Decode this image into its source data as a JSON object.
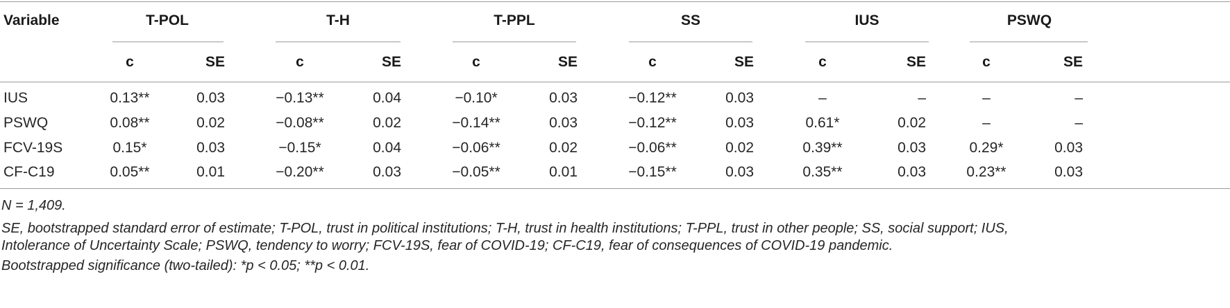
{
  "table": {
    "variable_header": "Variable",
    "groups": [
      "T-POL",
      "T-H",
      "T-PPL",
      "SS",
      "IUS",
      "PSWQ"
    ],
    "sub_headers": [
      "c",
      "SE",
      "c",
      "SE",
      "c",
      "SE",
      "c",
      "SE",
      "c",
      "SE",
      "c",
      "SE"
    ],
    "rows": [
      {
        "label": "IUS",
        "cells": [
          "0.13**",
          "0.03",
          "−0.13**",
          "0.04",
          "−0.10*",
          "0.03",
          "−0.12**",
          "0.03",
          "–",
          "–",
          "–",
          "–"
        ]
      },
      {
        "label": "PSWQ",
        "cells": [
          "0.08**",
          "0.02",
          "−0.08**",
          "0.02",
          "−0.14**",
          "0.03",
          "−0.12**",
          "0.03",
          "0.61*",
          "0.02",
          "–",
          "–"
        ]
      },
      {
        "label": "FCV-19S",
        "cells": [
          "0.15*",
          "0.03",
          "−0.15*",
          "0.04",
          "−0.06**",
          "0.02",
          "−0.06**",
          "0.02",
          "0.39**",
          "0.03",
          "0.29*",
          "0.03"
        ]
      },
      {
        "label": "CF-C19",
        "cells": [
          "0.05**",
          "0.01",
          "−0.20**",
          "0.03",
          "−0.05**",
          "0.01",
          "−0.15**",
          "0.03",
          "0.35**",
          "0.03",
          "0.23**",
          "0.03"
        ]
      }
    ]
  },
  "notes": [
    "N = 1,409.",
    "SE, bootstrapped standard error of estimate; T-POL, trust in political institutions; T-H, trust in health institutions; T-PPL, trust in other people; SS, social support; IUS,",
    "Intolerance of Uncertainty Scale; PSWQ, tendency to worry; FCV-19S, fear of COVID-19; CF-C19, fear of consequences of COVID-19 pandemic.",
    "Bootstrapped significance (two-tailed): *p < 0.05; **p < 0.01."
  ]
}
